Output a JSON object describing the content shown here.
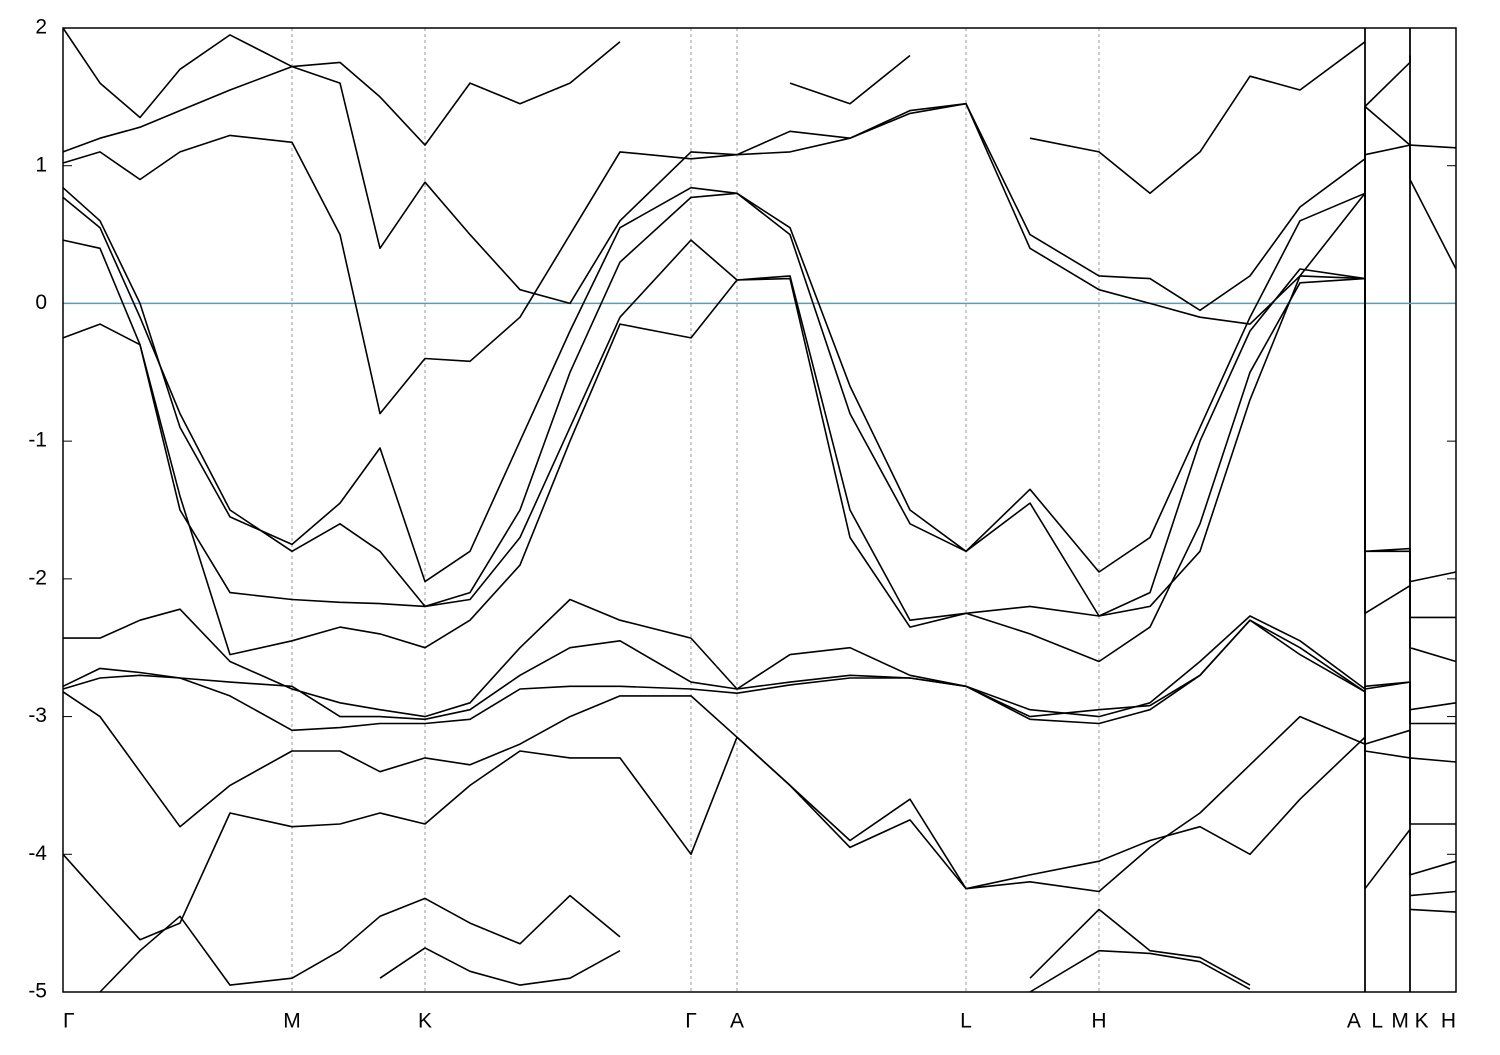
{
  "chart_data": {
    "type": "line",
    "x": [
      0,
      0.37,
      0.77,
      1.17,
      1.67,
      2.29,
      2.77,
      3.17,
      3.62,
      4.07,
      4.57,
      5.07,
      5.57,
      6.28,
      6.74,
      7.27,
      7.87,
      8.47,
      9.03,
      9.67,
      10.36,
      10.87,
      11.37,
      11.87,
      12.37,
      13.02,
      13.02,
      13.47,
      13.47,
      13.93
    ],
    "xlim": [
      0,
      13.93
    ],
    "ylim": [
      -5,
      2
    ],
    "yticks": [
      -5,
      -4,
      -3,
      -2,
      -1,
      0,
      1,
      2
    ],
    "xticks": [
      {
        "value": 0,
        "label": "Γ"
      },
      {
        "value": 2.29,
        "label": "M"
      },
      {
        "value": 3.62,
        "label": "K"
      },
      {
        "value": 6.28,
        "label": "Γ"
      },
      {
        "value": 6.74,
        "label": "A"
      },
      {
        "value": 9.03,
        "label": "L"
      },
      {
        "value": 10.36,
        "label": "H"
      },
      {
        "value": 13.02,
        "label": "A  L"
      },
      {
        "value": 13.47,
        "label": "M K"
      },
      {
        "value": 13.93,
        "label": "H"
      }
    ],
    "separators": [
      13.02,
      13.47
    ],
    "grid": true,
    "fermi_level": 0,
    "fermi_color": "#4aa3c4",
    "series": [
      {
        "color": "#000000",
        "values": [
          0.77,
          0.55,
          -0.1,
          -0.8,
          -1.5,
          -1.8,
          -1.6,
          -1.8,
          -2.2,
          -2.1,
          -1.5,
          -0.5,
          0.3,
          0.77,
          0.8,
          0.5,
          -0.8,
          -1.6,
          -1.8,
          -1.45,
          -2.27,
          -2.1,
          -1.0,
          -0.2,
          0.25,
          0.18,
          1.43,
          1.15,
          0.9,
          0.25
        ]
      },
      {
        "color": "#000000",
        "values": [
          0.84,
          0.6,
          0.0,
          -0.9,
          -1.55,
          -1.75,
          -1.45,
          -1.05,
          -2.02,
          -1.8,
          -1.0,
          -0.2,
          0.55,
          0.84,
          0.8,
          0.55,
          -0.6,
          -1.5,
          -1.8,
          -1.35,
          -1.95,
          -1.7,
          -0.9,
          -0.1,
          0.6,
          0.8,
          -1.8,
          -1.8,
          -2.02,
          -1.95
        ]
      },
      {
        "color": "#000000",
        "values": [
          0.46,
          0.4,
          -0.3,
          -1.5,
          -2.1,
          -2.15,
          -2.17,
          -2.18,
          -2.2,
          -2.15,
          -1.7,
          -0.9,
          -0.1,
          0.46,
          0.17,
          0.2,
          -1.5,
          -2.3,
          -2.25,
          -2.2,
          -2.27,
          -2.2,
          -1.8,
          -0.7,
          0.2,
          0.18,
          -1.8,
          -1.78,
          -2.28,
          -2.28
        ]
      },
      {
        "color": "#000000",
        "values": [
          -0.25,
          -0.15,
          -0.3,
          -1.4,
          -2.55,
          -2.45,
          -2.35,
          -2.4,
          -2.5,
          -2.3,
          -1.9,
          -1.0,
          -0.15,
          -0.25,
          0.17,
          0.18,
          -1.7,
          -2.35,
          -2.25,
          -2.4,
          -2.6,
          -2.35,
          -1.6,
          -0.5,
          0.15,
          0.18,
          -2.25,
          -2.05,
          -2.5,
          -2.6
        ]
      },
      {
        "color": "#000000",
        "values": [
          -2.43,
          -2.43,
          -2.3,
          -2.22,
          -2.6,
          -2.8,
          -2.9,
          -2.95,
          -3.0,
          -2.9,
          -2.5,
          -2.15,
          -2.3,
          -2.43,
          -2.8,
          -2.55,
          -2.5,
          -2.7,
          -2.78,
          -2.95,
          -3.0,
          -2.9,
          -2.6,
          -2.27,
          -2.45,
          -2.8,
          -2.8,
          -2.75,
          -2.95,
          -2.9
        ]
      },
      {
        "color": "#000000",
        "values": [
          -2.78,
          -2.65,
          -2.68,
          -2.72,
          -2.75,
          -2.78,
          -3.0,
          -3.0,
          -3.02,
          -2.95,
          -2.7,
          -2.5,
          -2.45,
          -2.75,
          -2.8,
          -2.75,
          -2.7,
          -2.72,
          -2.78,
          -3.0,
          -2.95,
          -2.92,
          -2.7,
          -2.3,
          -2.5,
          -2.82,
          -2.78,
          -2.75,
          -3.05,
          -3.05
        ]
      },
      {
        "color": "#000000",
        "values": [
          -2.8,
          -2.72,
          -2.7,
          -2.72,
          -2.85,
          -3.1,
          -3.08,
          -3.05,
          -3.05,
          -3.02,
          -2.8,
          -2.78,
          -2.78,
          -2.8,
          -2.83,
          -2.77,
          -2.72,
          -2.72,
          -2.78,
          -3.02,
          -3.05,
          -2.95,
          -2.7,
          -2.3,
          -2.55,
          -2.82,
          -3.2,
          -3.1,
          -3.3,
          -3.33
        ]
      },
      {
        "color": "#000000",
        "values": [
          -2.82,
          -3.0,
          -3.4,
          -3.8,
          -3.5,
          -3.25,
          -3.25,
          -3.4,
          -3.3,
          -3.35,
          -3.2,
          -3.0,
          -2.85,
          -2.85,
          -3.15,
          -3.5,
          -3.95,
          -3.75,
          -4.25,
          -4.2,
          -4.27,
          -3.95,
          -3.7,
          -3.35,
          -3.0,
          -3.2,
          -3.25,
          -3.3,
          -3.78,
          -3.78
        ]
      },
      {
        "color": "#000000",
        "values": [
          -4.0,
          -4.3,
          -4.62,
          -4.5,
          -3.7,
          -3.8,
          -3.78,
          -3.7,
          -3.78,
          -3.5,
          -3.25,
          -3.3,
          -3.3,
          -4.0,
          -3.15,
          -3.5,
          -3.9,
          -3.6,
          -4.25,
          -4.15,
          -4.05,
          -3.9,
          -3.8,
          -4.0,
          -3.6,
          -3.15,
          -4.25,
          -3.82,
          -4.15,
          -4.05
        ]
      },
      {
        "color": "#000000",
        "values": [
          null,
          -5.0,
          -4.7,
          -4.45,
          -4.95,
          -4.9,
          -4.7,
          -4.45,
          -4.32,
          -4.5,
          -4.65,
          -4.3,
          -4.6,
          null,
          null,
          null,
          null,
          null,
          null,
          -4.9,
          -4.4,
          -4.7,
          -4.75,
          -4.95,
          null,
          null,
          null,
          null,
          -4.3,
          -4.27
        ]
      },
      {
        "color": "#000000",
        "values": [
          null,
          null,
          null,
          null,
          null,
          null,
          null,
          -4.9,
          -4.68,
          -4.85,
          -4.95,
          -4.9,
          -4.7,
          null,
          null,
          null,
          null,
          null,
          null,
          -5.0,
          -4.7,
          -4.72,
          -4.78,
          -4.98,
          null,
          null,
          null,
          null,
          -4.4,
          -4.42
        ]
      },
      {
        "color": "#000000",
        "values": [
          1.02,
          1.1,
          0.9,
          1.1,
          1.22,
          1.17,
          0.5,
          -0.8,
          -0.4,
          -0.42,
          -0.1,
          0.5,
          1.1,
          1.05,
          1.08,
          1.1,
          1.2,
          1.4,
          1.45,
          0.4,
          0.1,
          0.0,
          -0.1,
          -0.15,
          0.2,
          0.8,
          1.08,
          1.15,
          1.15,
          1.13
        ]
      },
      {
        "color": "#000000",
        "values": [
          1.1,
          1.2,
          1.28,
          1.4,
          1.55,
          1.72,
          1.6,
          0.4,
          0.88,
          0.5,
          0.1,
          0.0,
          0.6,
          1.1,
          1.08,
          1.25,
          1.2,
          1.38,
          1.45,
          0.5,
          0.2,
          0.18,
          -0.05,
          0.2,
          0.7,
          1.05,
          1.43,
          1.75,
          1.8,
          null
        ]
      },
      {
        "color": "#000000",
        "values": [
          2.0,
          1.6,
          1.35,
          1.7,
          1.95,
          1.72,
          1.75,
          1.5,
          1.15,
          1.6,
          1.45,
          1.6,
          1.9,
          null,
          null,
          1.6,
          1.45,
          1.8,
          null,
          1.2,
          1.1,
          0.8,
          1.1,
          1.65,
          1.55,
          1.9,
          null,
          null,
          null,
          null
        ]
      }
    ]
  }
}
